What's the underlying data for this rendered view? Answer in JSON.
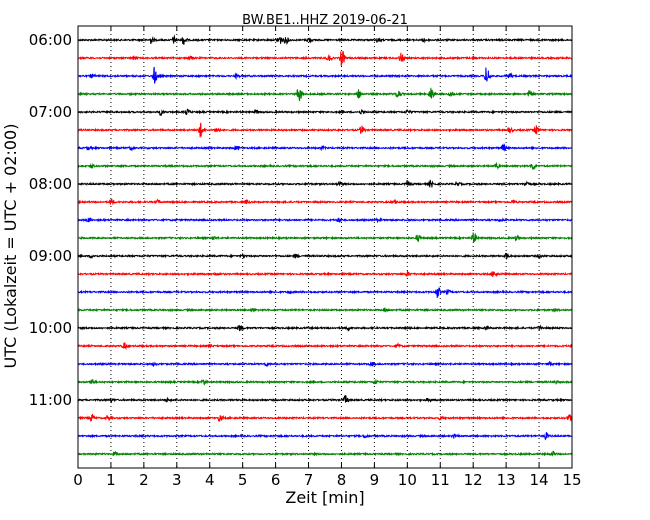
{
  "chart_data": {
    "type": "line",
    "title": "BW.BE1..HHZ 2019-06-21",
    "xlabel": "Zeit  [min]",
    "ylabel": "UTC (Lokalzeit = UTC + 02:00)",
    "xlim": [
      0,
      15
    ],
    "x_ticks": [
      "0",
      "1",
      "2",
      "3",
      "4",
      "5",
      "6",
      "7",
      "8",
      "9",
      "10",
      "11",
      "12",
      "13",
      "14",
      "15"
    ],
    "y_tick_labels": [
      "06:00",
      "07:00",
      "08:00",
      "09:00",
      "10:00",
      "11:00"
    ],
    "y_tick_rows": [
      0,
      4,
      8,
      12,
      16,
      20
    ],
    "grid": "vertical dotted",
    "trace_colors": [
      "#000000",
      "#ff0000",
      "#0000ff",
      "#008000"
    ],
    "traces": [
      {
        "start": "06:00",
        "events": [
          [
            2.2,
            0.35
          ],
          [
            2.9,
            0.4
          ],
          [
            3.2,
            0.5
          ],
          [
            6.1,
            0.55
          ],
          [
            6.3,
            0.4
          ],
          [
            7.0,
            0.3
          ],
          [
            9.1,
            0.25
          ],
          [
            10.5,
            0.2
          ]
        ]
      },
      {
        "start": "06:15",
        "events": [
          [
            1.7,
            0.2
          ],
          [
            3.4,
            0.2
          ],
          [
            7.6,
            0.35
          ],
          [
            8.0,
            0.9
          ],
          [
            9.8,
            0.6
          ],
          [
            12.0,
            0.2
          ]
        ]
      },
      {
        "start": "06:30",
        "events": [
          [
            0.4,
            0.2
          ],
          [
            2.3,
            1.0
          ],
          [
            4.8,
            0.2
          ],
          [
            12.4,
            1.0
          ],
          [
            13.1,
            0.25
          ]
        ]
      },
      {
        "start": "06:45",
        "events": [
          [
            6.7,
            0.9
          ],
          [
            8.5,
            0.5
          ],
          [
            9.7,
            0.5
          ],
          [
            10.7,
            0.75
          ],
          [
            11.3,
            0.3
          ],
          [
            13.7,
            0.35
          ]
        ]
      },
      {
        "start": "07:00",
        "events": [
          [
            2.5,
            0.3
          ],
          [
            3.3,
            0.3
          ],
          [
            5.4,
            0.2
          ],
          [
            8.6,
            0.2
          ],
          [
            10.0,
            0.2
          ]
        ]
      },
      {
        "start": "07:15",
        "events": [
          [
            3.7,
            0.85
          ],
          [
            4.2,
            0.3
          ],
          [
            8.6,
            0.45
          ],
          [
            13.1,
            0.3
          ],
          [
            13.9,
            0.5
          ]
        ]
      },
      {
        "start": "07:30",
        "events": [
          [
            0.3,
            0.2
          ],
          [
            1.6,
            0.2
          ],
          [
            4.8,
            0.2
          ],
          [
            7.4,
            0.15
          ],
          [
            12.9,
            0.4
          ]
        ]
      },
      {
        "start": "07:45",
        "events": [
          [
            0.4,
            0.2
          ],
          [
            12.7,
            0.25
          ],
          [
            13.8,
            0.45
          ]
        ]
      },
      {
        "start": "08:00",
        "events": [
          [
            7.9,
            0.2
          ],
          [
            10.0,
            0.35
          ],
          [
            10.7,
            0.4
          ],
          [
            11.5,
            0.25
          ],
          [
            13.6,
            0.3
          ]
        ]
      },
      {
        "start": "08:15",
        "events": [
          [
            1.0,
            0.35
          ],
          [
            2.4,
            0.2
          ],
          [
            5.1,
            0.2
          ],
          [
            9.6,
            0.2
          ],
          [
            13.2,
            0.2
          ]
        ]
      },
      {
        "start": "08:30",
        "events": [
          [
            0.3,
            0.2
          ],
          [
            7.9,
            0.2
          ],
          [
            9.1,
            0.2
          ],
          [
            12.8,
            0.15
          ]
        ]
      },
      {
        "start": "08:45",
        "events": [
          [
            4.1,
            0.2
          ],
          [
            10.3,
            0.35
          ],
          [
            12.0,
            0.6
          ],
          [
            13.3,
            0.2
          ]
        ]
      },
      {
        "start": "09:00",
        "events": [
          [
            0.4,
            0.15
          ],
          [
            5.0,
            0.15
          ],
          [
            6.6,
            0.2
          ],
          [
            13.0,
            0.3
          ],
          [
            14.0,
            0.15
          ]
        ]
      },
      {
        "start": "09:15",
        "events": [
          [
            4.2,
            0.15
          ],
          [
            10.0,
            0.25
          ],
          [
            12.6,
            0.35
          ]
        ]
      },
      {
        "start": "09:30",
        "events": [
          [
            6.4,
            0.15
          ],
          [
            10.9,
            0.65
          ],
          [
            11.2,
            0.25
          ]
        ]
      },
      {
        "start": "09:45",
        "events": [
          [
            5.3,
            0.15
          ],
          [
            9.3,
            0.2
          ],
          [
            14.5,
            0.15
          ]
        ]
      },
      {
        "start": "10:00",
        "events": [
          [
            4.9,
            0.35
          ],
          [
            8.2,
            0.25
          ],
          [
            12.4,
            0.2
          ],
          [
            14.0,
            0.25
          ]
        ]
      },
      {
        "start": "10:15",
        "events": [
          [
            1.4,
            0.35
          ],
          [
            4.0,
            0.15
          ],
          [
            9.7,
            0.2
          ]
        ]
      },
      {
        "start": "10:30",
        "events": [
          [
            2.3,
            0.15
          ],
          [
            5.7,
            0.15
          ],
          [
            8.9,
            0.25
          ],
          [
            14.3,
            0.15
          ]
        ]
      },
      {
        "start": "10:45",
        "events": [
          [
            0.4,
            0.35
          ],
          [
            3.8,
            0.25
          ],
          [
            9.0,
            0.2
          ],
          [
            14.5,
            0.15
          ]
        ]
      },
      {
        "start": "11:00",
        "events": [
          [
            1.0,
            0.15
          ],
          [
            2.7,
            0.15
          ],
          [
            8.1,
            0.5
          ],
          [
            10.6,
            0.15
          ]
        ]
      },
      {
        "start": "11:15",
        "events": [
          [
            0.4,
            0.45
          ],
          [
            0.9,
            0.3
          ],
          [
            4.3,
            0.35
          ],
          [
            11.0,
            0.15
          ],
          [
            14.9,
            0.4
          ]
        ]
      },
      {
        "start": "11:30",
        "events": [
          [
            8.7,
            0.2
          ],
          [
            11.4,
            0.25
          ],
          [
            14.2,
            0.35
          ]
        ]
      },
      {
        "start": "11:45",
        "events": [
          [
            1.1,
            0.2
          ],
          [
            14.4,
            0.25
          ]
        ]
      }
    ]
  }
}
